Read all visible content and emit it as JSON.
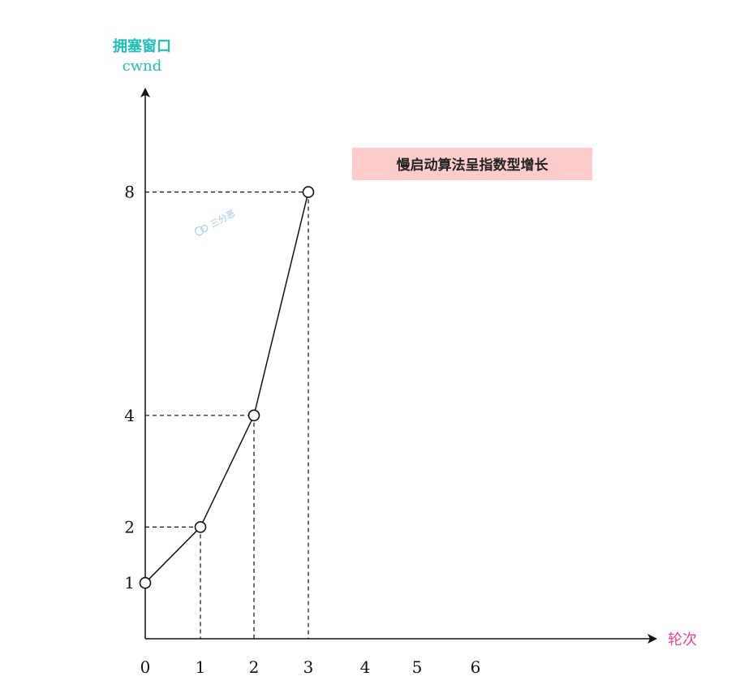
{
  "chart_data": {
    "type": "line",
    "ylabel": "拥塞窗口",
    "ylabel_sub": "cwnd",
    "xlabel": "轮次",
    "x_ticks": [
      0,
      1,
      2,
      3,
      4,
      5,
      6
    ],
    "y_ticks": [
      1,
      2,
      4,
      8
    ],
    "xlim": [
      0,
      6.8
    ],
    "points": [
      {
        "x": 0,
        "y": 1
      },
      {
        "x": 1,
        "y": 2
      },
      {
        "x": 2,
        "y": 4
      },
      {
        "x": 3,
        "y": 8
      }
    ],
    "annotation": "慢启动算法呈指数型增长",
    "annotation_bg": "#ffcccc",
    "watermark": "三分恶",
    "grid": false,
    "guide_lines": "dashed",
    "colors": {
      "ylabel": "#1fbfb8",
      "xlabel": "#e8419a",
      "line": "#111111"
    }
  }
}
